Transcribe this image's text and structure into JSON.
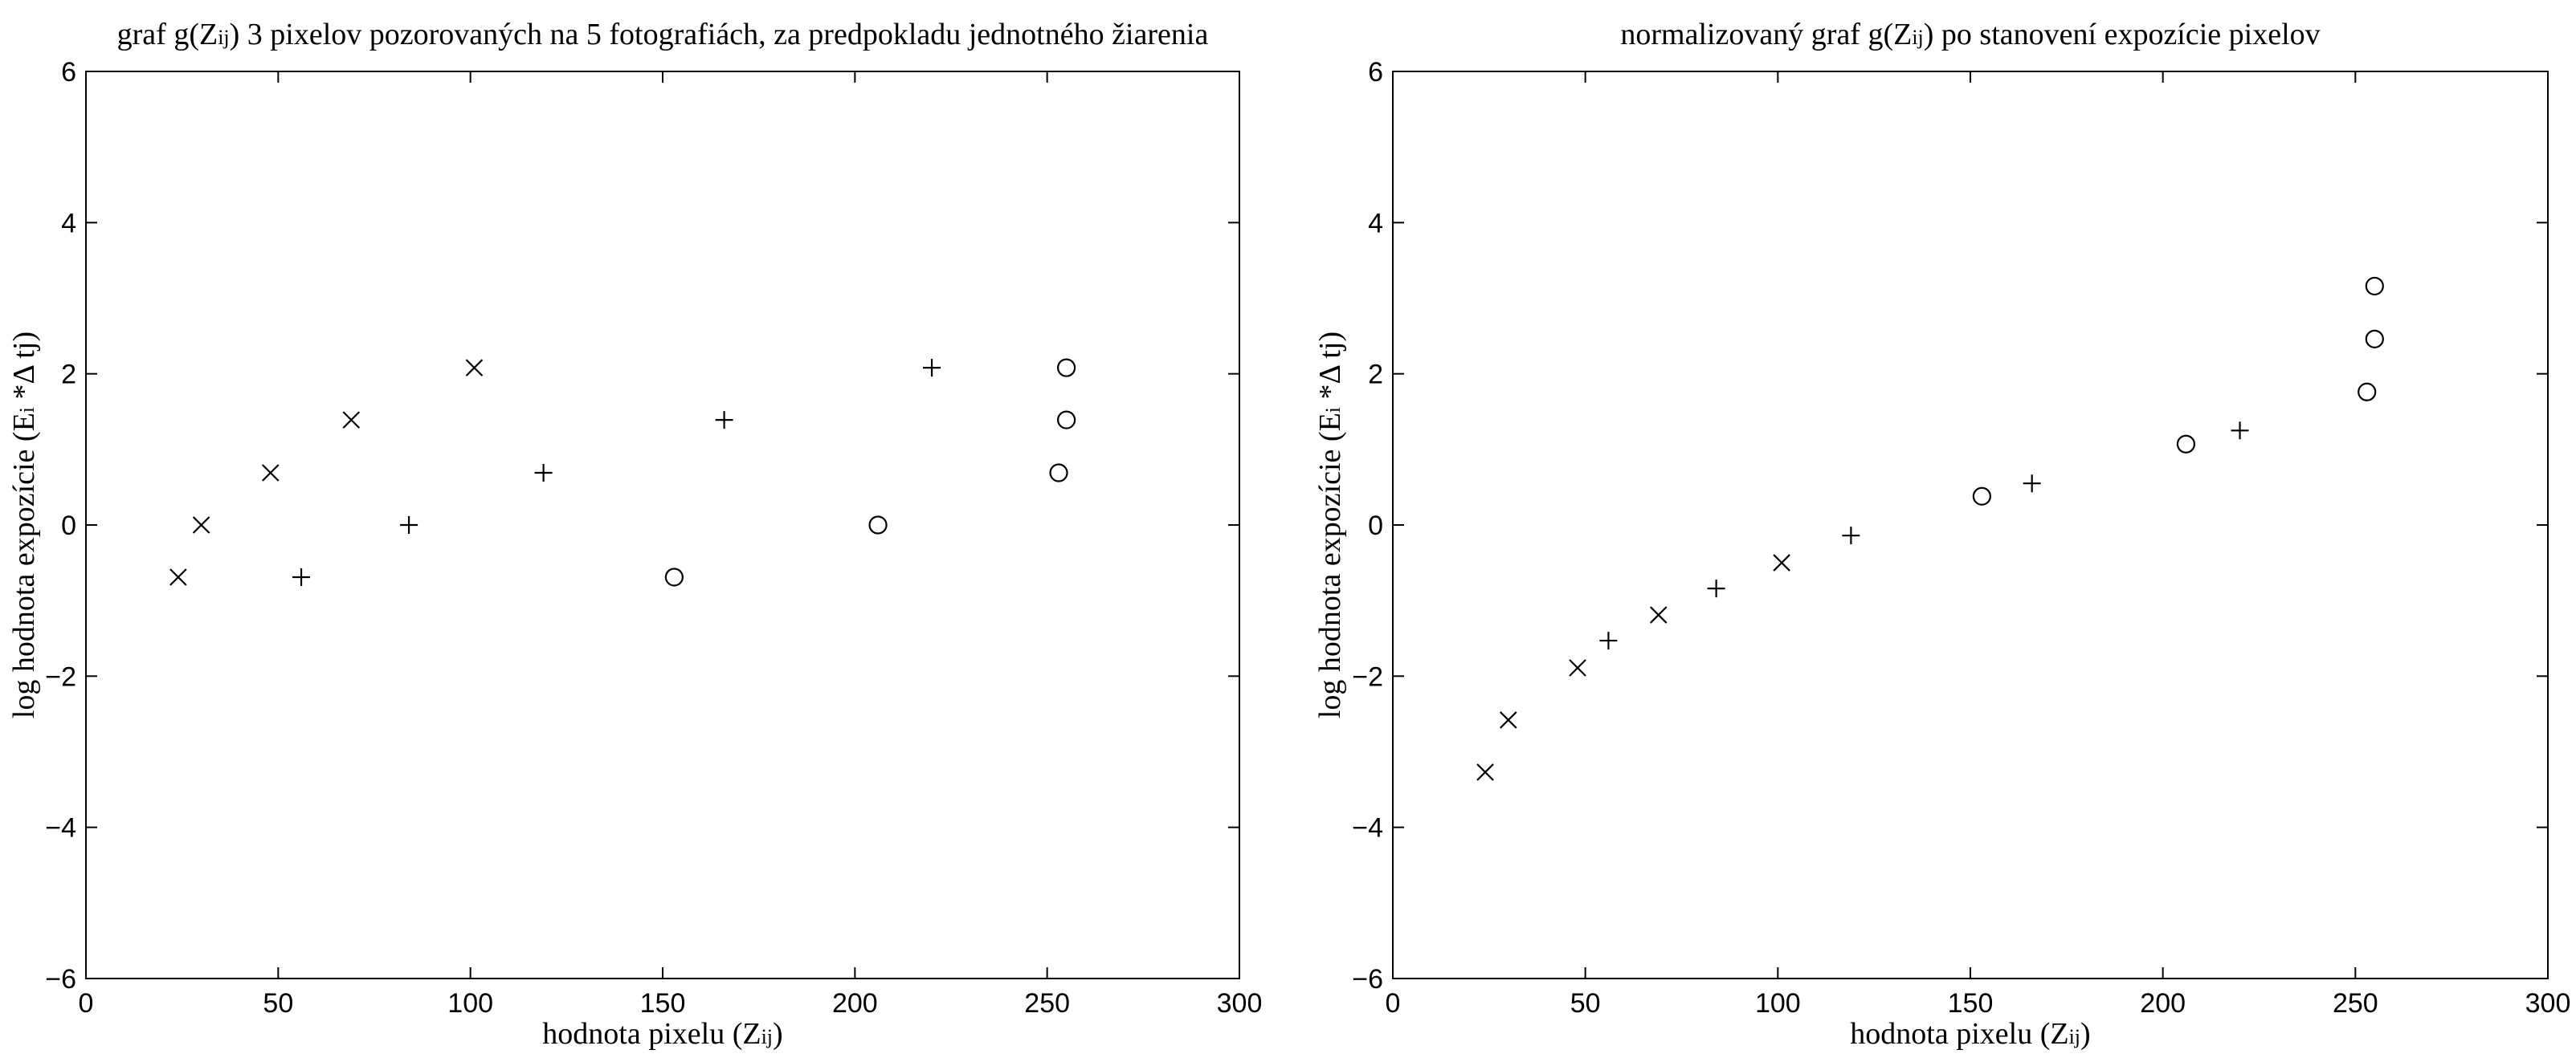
{
  "chart_data": [
    {
      "type": "scatter",
      "title_parts": [
        "graf g(Z",
        "ij",
        ") 3 pixelov pozorovaných na 5 fotografiách, za predpokladu jednotného žiarenia"
      ],
      "xlabel_parts": [
        "hodnota pixelu (Z",
        "ij",
        ")"
      ],
      "ylabel_parts": [
        "log hodnota expozície (E",
        "i",
        " *Δ tj)"
      ],
      "xlim": [
        0,
        300
      ],
      "ylim": [
        -6,
        6
      ],
      "xticks": [
        0,
        50,
        100,
        150,
        200,
        250,
        300
      ],
      "yticks": [
        -6,
        -4,
        -2,
        0,
        2,
        4,
        6
      ],
      "xtick_labels": [
        "0",
        "50",
        "100",
        "150",
        "200",
        "250",
        "300"
      ],
      "ytick_labels": [
        "−6",
        "−4",
        "−2",
        "0",
        "2",
        "4",
        "6"
      ],
      "grid": false,
      "series": [
        {
          "marker": "x",
          "x": [
            24,
            30,
            48,
            69,
            101
          ],
          "y": [
            -0.69,
            0.0,
            0.69,
            1.39,
            2.08
          ]
        },
        {
          "marker": "+",
          "x": [
            56,
            84,
            119,
            166,
            220
          ],
          "y": [
            -0.69,
            0.0,
            0.69,
            1.39,
            2.08
          ]
        },
        {
          "marker": "o",
          "x": [
            153,
            206,
            253,
            255,
            255
          ],
          "y": [
            -0.69,
            0.0,
            0.69,
            1.39,
            2.08
          ]
        }
      ]
    },
    {
      "type": "scatter",
      "title_parts": [
        "normalizovaný graf g(Z",
        "ij",
        ") po stanovení expozície pixelov"
      ],
      "xlabel_parts": [
        "hodnota pixelu (Z",
        "ij",
        ")"
      ],
      "ylabel_parts": [
        "log hodnota expozície (E",
        "i",
        " *Δ tj)"
      ],
      "xlim": [
        0,
        300
      ],
      "ylim": [
        -6,
        6
      ],
      "xticks": [
        0,
        50,
        100,
        150,
        200,
        250,
        300
      ],
      "yticks": [
        -6,
        -4,
        -2,
        0,
        2,
        4,
        6
      ],
      "xtick_labels": [
        "0",
        "50",
        "100",
        "150",
        "200",
        "250",
        "300"
      ],
      "ytick_labels": [
        "−6",
        "−4",
        "−2",
        "0",
        "2",
        "4",
        "6"
      ],
      "grid": false,
      "series": [
        {
          "marker": "x",
          "x": [
            24,
            30,
            48,
            69,
            101
          ],
          "y": [
            -3.27,
            -2.58,
            -1.89,
            -1.19,
            -0.5
          ]
        },
        {
          "marker": "+",
          "x": [
            56,
            84,
            119,
            166,
            220
          ],
          "y": [
            -1.53,
            -0.84,
            -0.14,
            0.55,
            1.25
          ]
        },
        {
          "marker": "o",
          "x": [
            153,
            206,
            253,
            255,
            255
          ],
          "y": [
            0.38,
            1.07,
            1.76,
            2.46,
            3.16
          ]
        }
      ]
    }
  ]
}
